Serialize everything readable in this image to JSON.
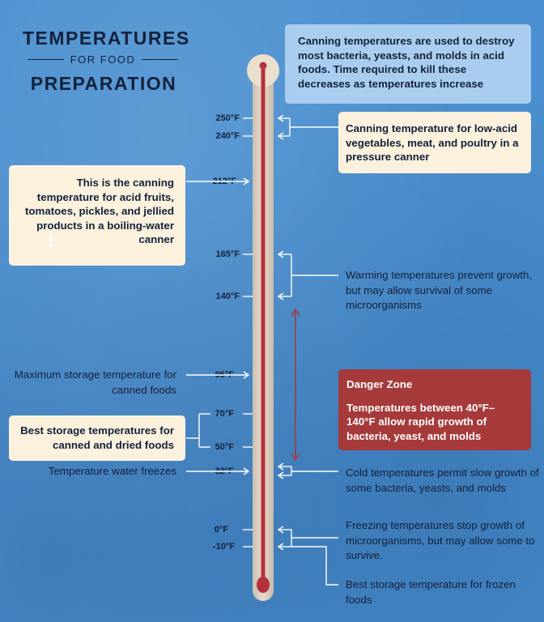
{
  "title": {
    "line1": "TEMPERATURES",
    "line2": "FOR FOOD",
    "line3": "PREPARATION"
  },
  "intro_box": "Canning temperatures are used to destroy most bacteria, yeasts, and molds in acid foods. Time required to kill these decreases as temperatures increase",
  "low_acid_box": "Canning temperature for low-acid vegetables, meat, and poultry in a pressure canner",
  "acid_box": "This is the canning temperature for acid fruits, tomatoes, pickles, and jellied products in a boiling-water canner",
  "warming_note": "Warming temperatures prevent growth, but may allow survival of some microorganisms",
  "max_storage_note": "Maximum storage temperature for canned foods",
  "best_storage_box": "Best storage temperatures for canned and dried foods",
  "water_freezes_note": "Temperature water freezes",
  "danger_zone": {
    "title": "Danger Zone",
    "text": "Temperatures between 40°F–140°F allow rapid growth of bacteria, yeast, and molds"
  },
  "cold_note": "Cold temperatures permit slow growth of some bacteria, yeasts, and molds",
  "freezing_note": "Freezing temperatures stop growth of microorganisms, but may allow some to survive.",
  "frozen_storage_note": "Best storage temperature for frozen foods",
  "temperatures": {
    "t250": "250°F",
    "t240": "240°F",
    "t212": "212°F",
    "t165": "165°F",
    "t140": "140°F",
    "t95": "95°F",
    "t70": "70°F",
    "t50": "50°F",
    "t32": "32°F",
    "t0": "0°F",
    "tm10": "-10°F"
  },
  "colors": {
    "background": "#4a8fcf",
    "text": "#14213a",
    "cream": "#fbf1dd",
    "light_blue": "#a9cdee",
    "danger_red": "#a63a3a",
    "mercury": "#b3313a",
    "arrows": "#ffffff"
  }
}
